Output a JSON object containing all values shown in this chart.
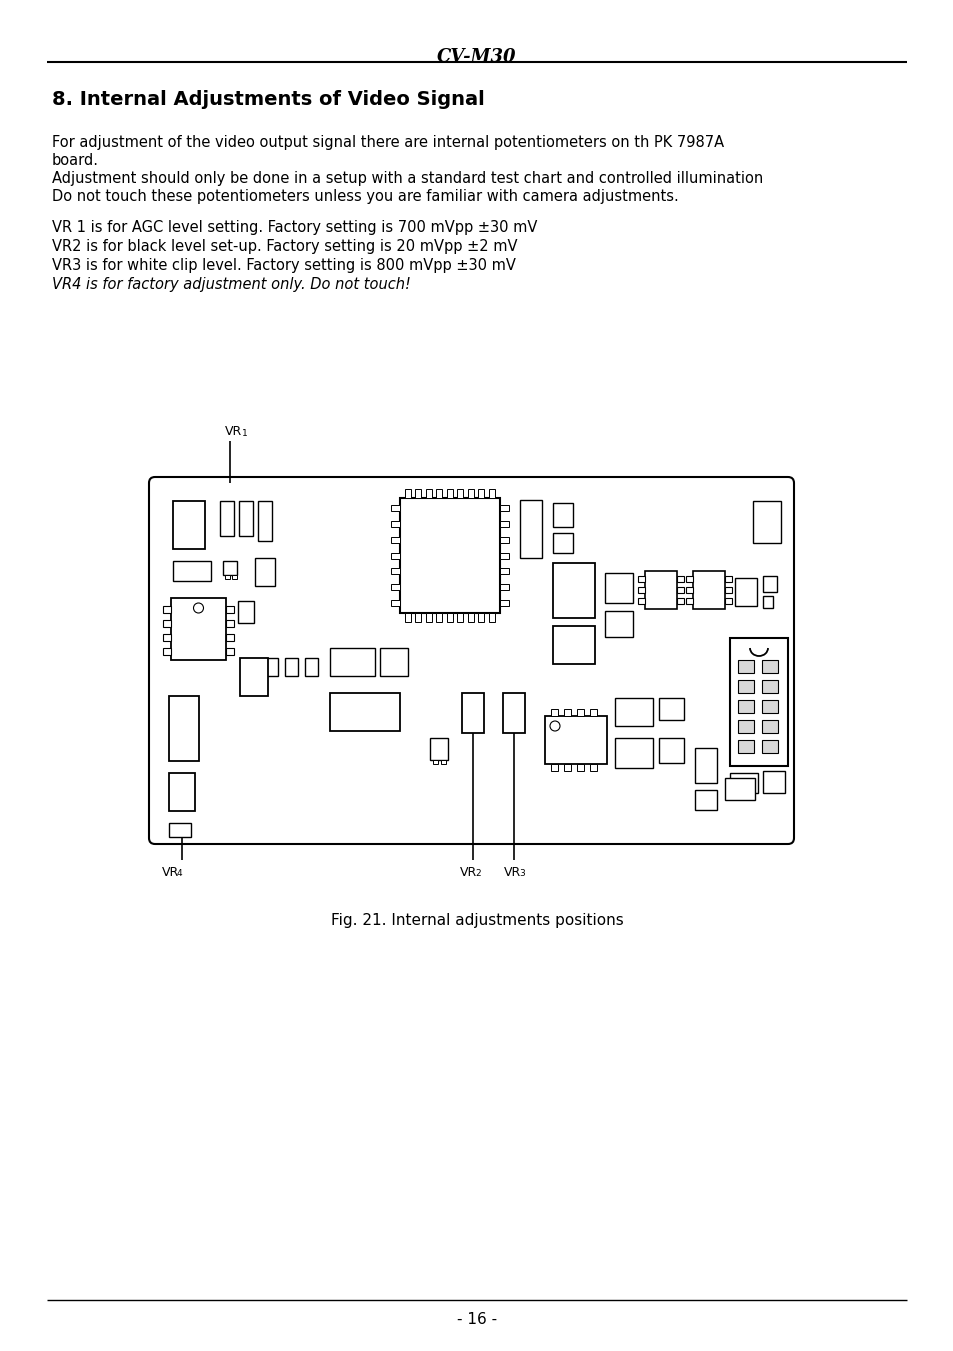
{
  "page_title": "CV-M30",
  "section_title": "8. Internal Adjustments of Video Signal",
  "body_text_1": "For adjustment of the video output signal there are internal potentiometers on th PK 7987A",
  "body_text_2": "board.",
  "body_text_3": "Adjustment should only be done in a setup with a standard test chart and controlled illumination",
  "body_text_4": "Do not touch these potentiometers unless you are familiar with camera adjustments.",
  "vr_texts": [
    "VR 1 is for AGC level setting. Factory setting is 700 mVpp ±30 mV",
    "VR2 is for black level set-up. Factory setting is 20 mVpp ±2 mV",
    "VR3 is for white clip level. Factory setting is 800 mVpp ±30 mV"
  ],
  "vr4_text": "VR4 is for factory adjustment only. Do not touch!",
  "fig_caption": "Fig. 21. Internal adjustments positions",
  "page_number": "- 16 -",
  "bg_color": "#ffffff",
  "text_color": "#000000"
}
